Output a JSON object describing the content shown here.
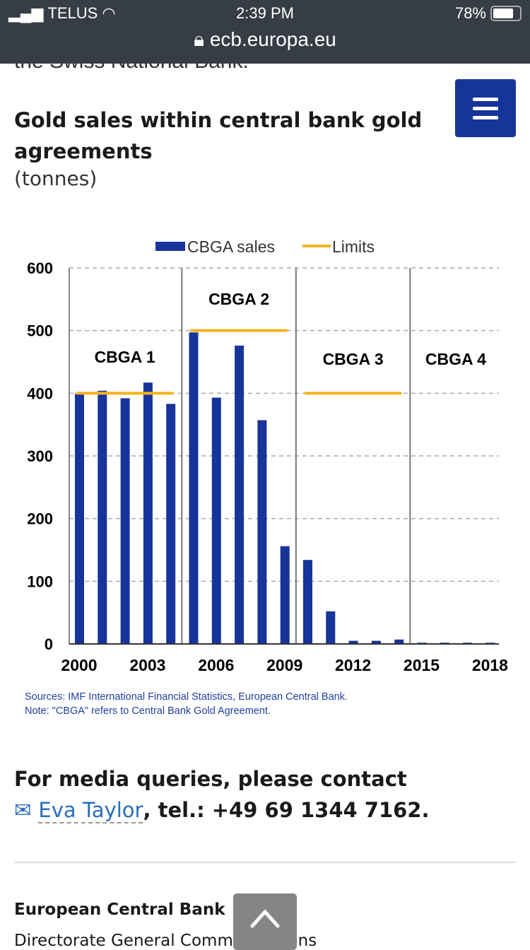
{
  "status_bar": {
    "carrier": "TELUS",
    "time": "2:39 PM",
    "battery": "78%",
    "battery_level": 0.78,
    "url": "ecb.europa.eu"
  },
  "page": {
    "cut_text": "the Swiss National Bank.",
    "title": "Gold sales within central bank gold agreements",
    "unit": "(tonnes)",
    "contact_prefix": "For media queries, please contact",
    "contact_name": "Eva Taylor",
    "contact_tel": ", tel.: +49 69 1344 7162.",
    "footer_org": "European Central Bank",
    "footer_dept": "Directorate General Communications"
  },
  "chart_data": {
    "type": "bar",
    "x": [
      2000,
      2001,
      2002,
      2003,
      2004,
      2005,
      2006,
      2007,
      2008,
      2009,
      2010,
      2011,
      2012,
      2013,
      2014,
      2015,
      2016,
      2017,
      2018
    ],
    "series": [
      {
        "name": "CBGA sales",
        "color": "#17349b",
        "values": [
          399,
          404,
          392,
          417,
          383,
          497,
          393,
          476,
          357,
          156,
          134,
          52,
          5,
          5,
          7,
          2,
          2,
          2,
          2
        ]
      }
    ],
    "limits": {
      "name": "Limits",
      "color": "#f5b21b",
      "segments": [
        {
          "from": 2000,
          "to": 2004,
          "value": 400
        },
        {
          "from": 2005,
          "to": 2009,
          "value": 500
        },
        {
          "from": 2010,
          "to": 2014,
          "value": 400
        }
      ]
    },
    "periods": [
      {
        "label": "CBGA 1",
        "from": 2000,
        "to": 2004
      },
      {
        "label": "CBGA 2",
        "from": 2005,
        "to": 2009
      },
      {
        "label": "CBGA 3",
        "from": 2010,
        "to": 2014
      },
      {
        "label": "CBGA 4",
        "from": 2015,
        "to": 2018
      }
    ],
    "xticks": [
      2000,
      2003,
      2006,
      2009,
      2012,
      2015,
      2018
    ],
    "yticks": [
      0,
      100,
      200,
      300,
      400,
      500,
      600
    ],
    "ylim": [
      0,
      600
    ],
    "grid": true,
    "legend": "top",
    "notes": [
      "Sources: IMF International Financial Statistics, European Central Bank.",
      "Note: \"CBGA\" refers to Central Bank Gold Agreement."
    ]
  }
}
